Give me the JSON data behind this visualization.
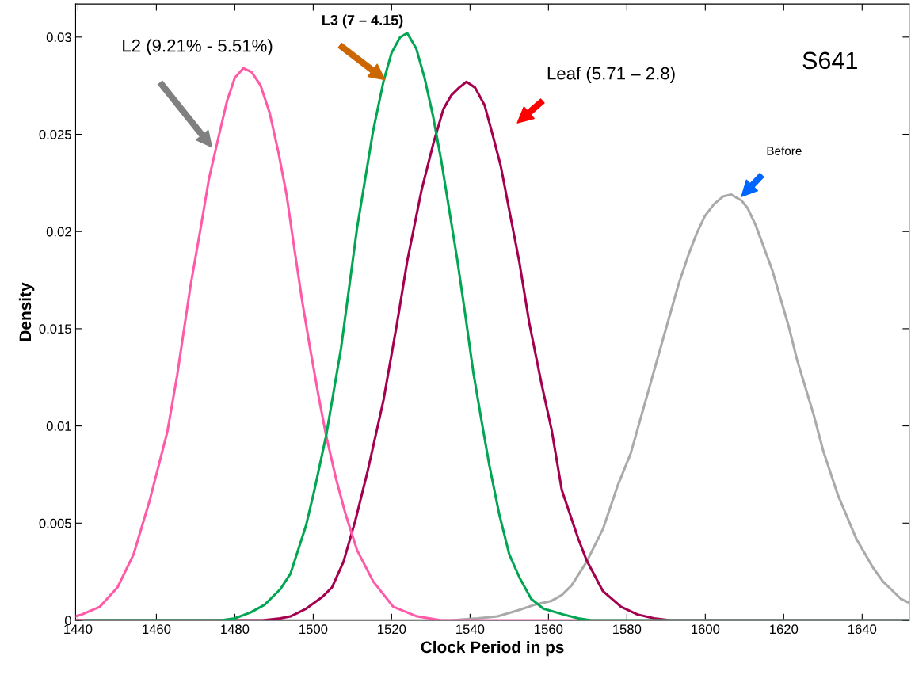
{
  "chart_data": {
    "type": "line",
    "xlabel": "Clock Period in ps",
    "ylabel": "Density",
    "xlim": [
      1439.4,
      1652
    ],
    "ylim": [
      0,
      0.0317
    ],
    "xticks": [
      1440,
      1460,
      1480,
      1500,
      1520,
      1540,
      1560,
      1580,
      1600,
      1620,
      1640
    ],
    "yticks": [
      0,
      {
        "value": 0.005,
        "label": "0.005"
      },
      {
        "value": 0.01,
        "label": "0.01"
      },
      {
        "value": 0.015,
        "label": "0.015"
      },
      {
        "value": 0.02,
        "label": "0.02"
      },
      {
        "value": 0.025,
        "label": "0.025"
      },
      {
        "value": 0.03,
        "label": "0.03"
      }
    ],
    "grid": false,
    "marker": "none",
    "line_style": "solid",
    "series": [
      {
        "color": "#aaaaaa",
        "x": [
          1439.4,
          1500,
          1535,
          1542,
          1547,
          1552,
          1556.5,
          1560.8,
          1563.4,
          1565.9,
          1569.7,
          1573.9,
          1577.6,
          1581.0,
          1585.2,
          1589.4,
          1593.2,
          1595.7,
          1597.8,
          1599.9,
          1602.2,
          1604.5,
          1606.6,
          1609.2,
          1610.8,
          1612.9,
          1617.1,
          1621.3,
          1623.4,
          1627.6,
          1630.1,
          1633.9,
          1638.5,
          1642.8,
          1645.3,
          1649.9,
          1652
        ],
        "values": [
          0,
          0,
          0,
          0.0001,
          0.0002,
          0.0005,
          0.0008,
          0.001,
          0.0013,
          0.0018,
          0.003,
          0.0047,
          0.0069,
          0.0086,
          0.0116,
          0.0146,
          0.0173,
          0.0188,
          0.0199,
          0.0208,
          0.0214,
          0.0218,
          0.0219,
          0.0216,
          0.0212,
          0.0203,
          0.018,
          0.0151,
          0.0134,
          0.0106,
          0.0087,
          0.0064,
          0.0042,
          0.0027,
          0.002,
          0.0011,
          0.0009
        ]
      },
      {
        "color": "#a50050",
        "x": [
          1439.4,
          1487.1,
          1491.6,
          1494.2,
          1498.2,
          1502.3,
          1504.8,
          1507.7,
          1510.7,
          1513.8,
          1517.9,
          1521.4,
          1524.0,
          1527.6,
          1530.6,
          1533.2,
          1535.2,
          1537.2,
          1539.1,
          1541.3,
          1543.7,
          1545.6,
          1547.8,
          1550.0,
          1552.6,
          1555.1,
          1558.2,
          1560.8,
          1563.4,
          1567.6,
          1569.7,
          1573.9,
          1578.5,
          1582.7,
          1586.9,
          1591.1,
          1652
        ],
        "values": [
          0,
          0,
          0.0001,
          0.0002,
          0.0006,
          0.0012,
          0.0017,
          0.003,
          0.0051,
          0.0076,
          0.0113,
          0.0153,
          0.0185,
          0.0221,
          0.0245,
          0.0263,
          0.027,
          0.0274,
          0.0277,
          0.0274,
          0.0265,
          0.0251,
          0.0234,
          0.0211,
          0.0184,
          0.0153,
          0.0122,
          0.0098,
          0.0067,
          0.0042,
          0.0031,
          0.0015,
          0.0007,
          0.0003,
          0.0001,
          0,
          0
        ]
      },
      {
        "color": "#00a651",
        "x": [
          1442,
          1476.5,
          1480,
          1484,
          1487.6,
          1491.6,
          1494.2,
          1498.2,
          1500.3,
          1503.3,
          1507.1,
          1511.2,
          1515.3,
          1517.9,
          1520,
          1522.2,
          1524.0,
          1526.3,
          1528.4,
          1530.6,
          1532.7,
          1534.7,
          1536.7,
          1538.8,
          1540.8,
          1542.9,
          1544.9,
          1547.4,
          1550,
          1552.6,
          1555.6,
          1558.7,
          1563.8,
          1567.6,
          1570.9,
          1652
        ],
        "values": [
          0,
          0,
          0.0001,
          0.0004,
          0.0008,
          0.0016,
          0.0024,
          0.0049,
          0.0067,
          0.0095,
          0.014,
          0.0202,
          0.0252,
          0.0277,
          0.0292,
          0.03,
          0.0302,
          0.0294,
          0.0279,
          0.0259,
          0.0236,
          0.0211,
          0.0186,
          0.0157,
          0.0128,
          0.0103,
          0.008,
          0.0055,
          0.0034,
          0.0022,
          0.0011,
          0.0006,
          0.0003,
          0.0001,
          0,
          0
        ]
      },
      {
        "color": "#ff5aa8",
        "x": [
          1439.4,
          1441.0,
          1445.6,
          1450.1,
          1454.2,
          1458.2,
          1462.8,
          1465.3,
          1468.7,
          1471.4,
          1473.4,
          1475.9,
          1478.0,
          1480.0,
          1482.2,
          1484.3,
          1486.6,
          1488.9,
          1491.1,
          1493.2,
          1495.2,
          1497.2,
          1499.2,
          1501.3,
          1503.3,
          1505.8,
          1508.2,
          1511.2,
          1515.3,
          1520.4,
          1526.5,
          1532.7,
          1652
        ],
        "values": [
          0.0002,
          0.0003,
          0.0007,
          0.0017,
          0.0034,
          0.0061,
          0.0097,
          0.0126,
          0.0172,
          0.0203,
          0.0227,
          0.0249,
          0.0267,
          0.0279,
          0.0284,
          0.0282,
          0.0275,
          0.0261,
          0.0241,
          0.0219,
          0.0191,
          0.0164,
          0.014,
          0.0116,
          0.0095,
          0.0073,
          0.0055,
          0.0036,
          0.002,
          0.0007,
          0.0002,
          0,
          0
        ]
      }
    ],
    "annotations": [
      "L2 (9.21% - 5.51%)",
      "L3 (7 – 4.15)",
      "Leaf (5.71 – 2.8)",
      "Before",
      "S641"
    ]
  }
}
